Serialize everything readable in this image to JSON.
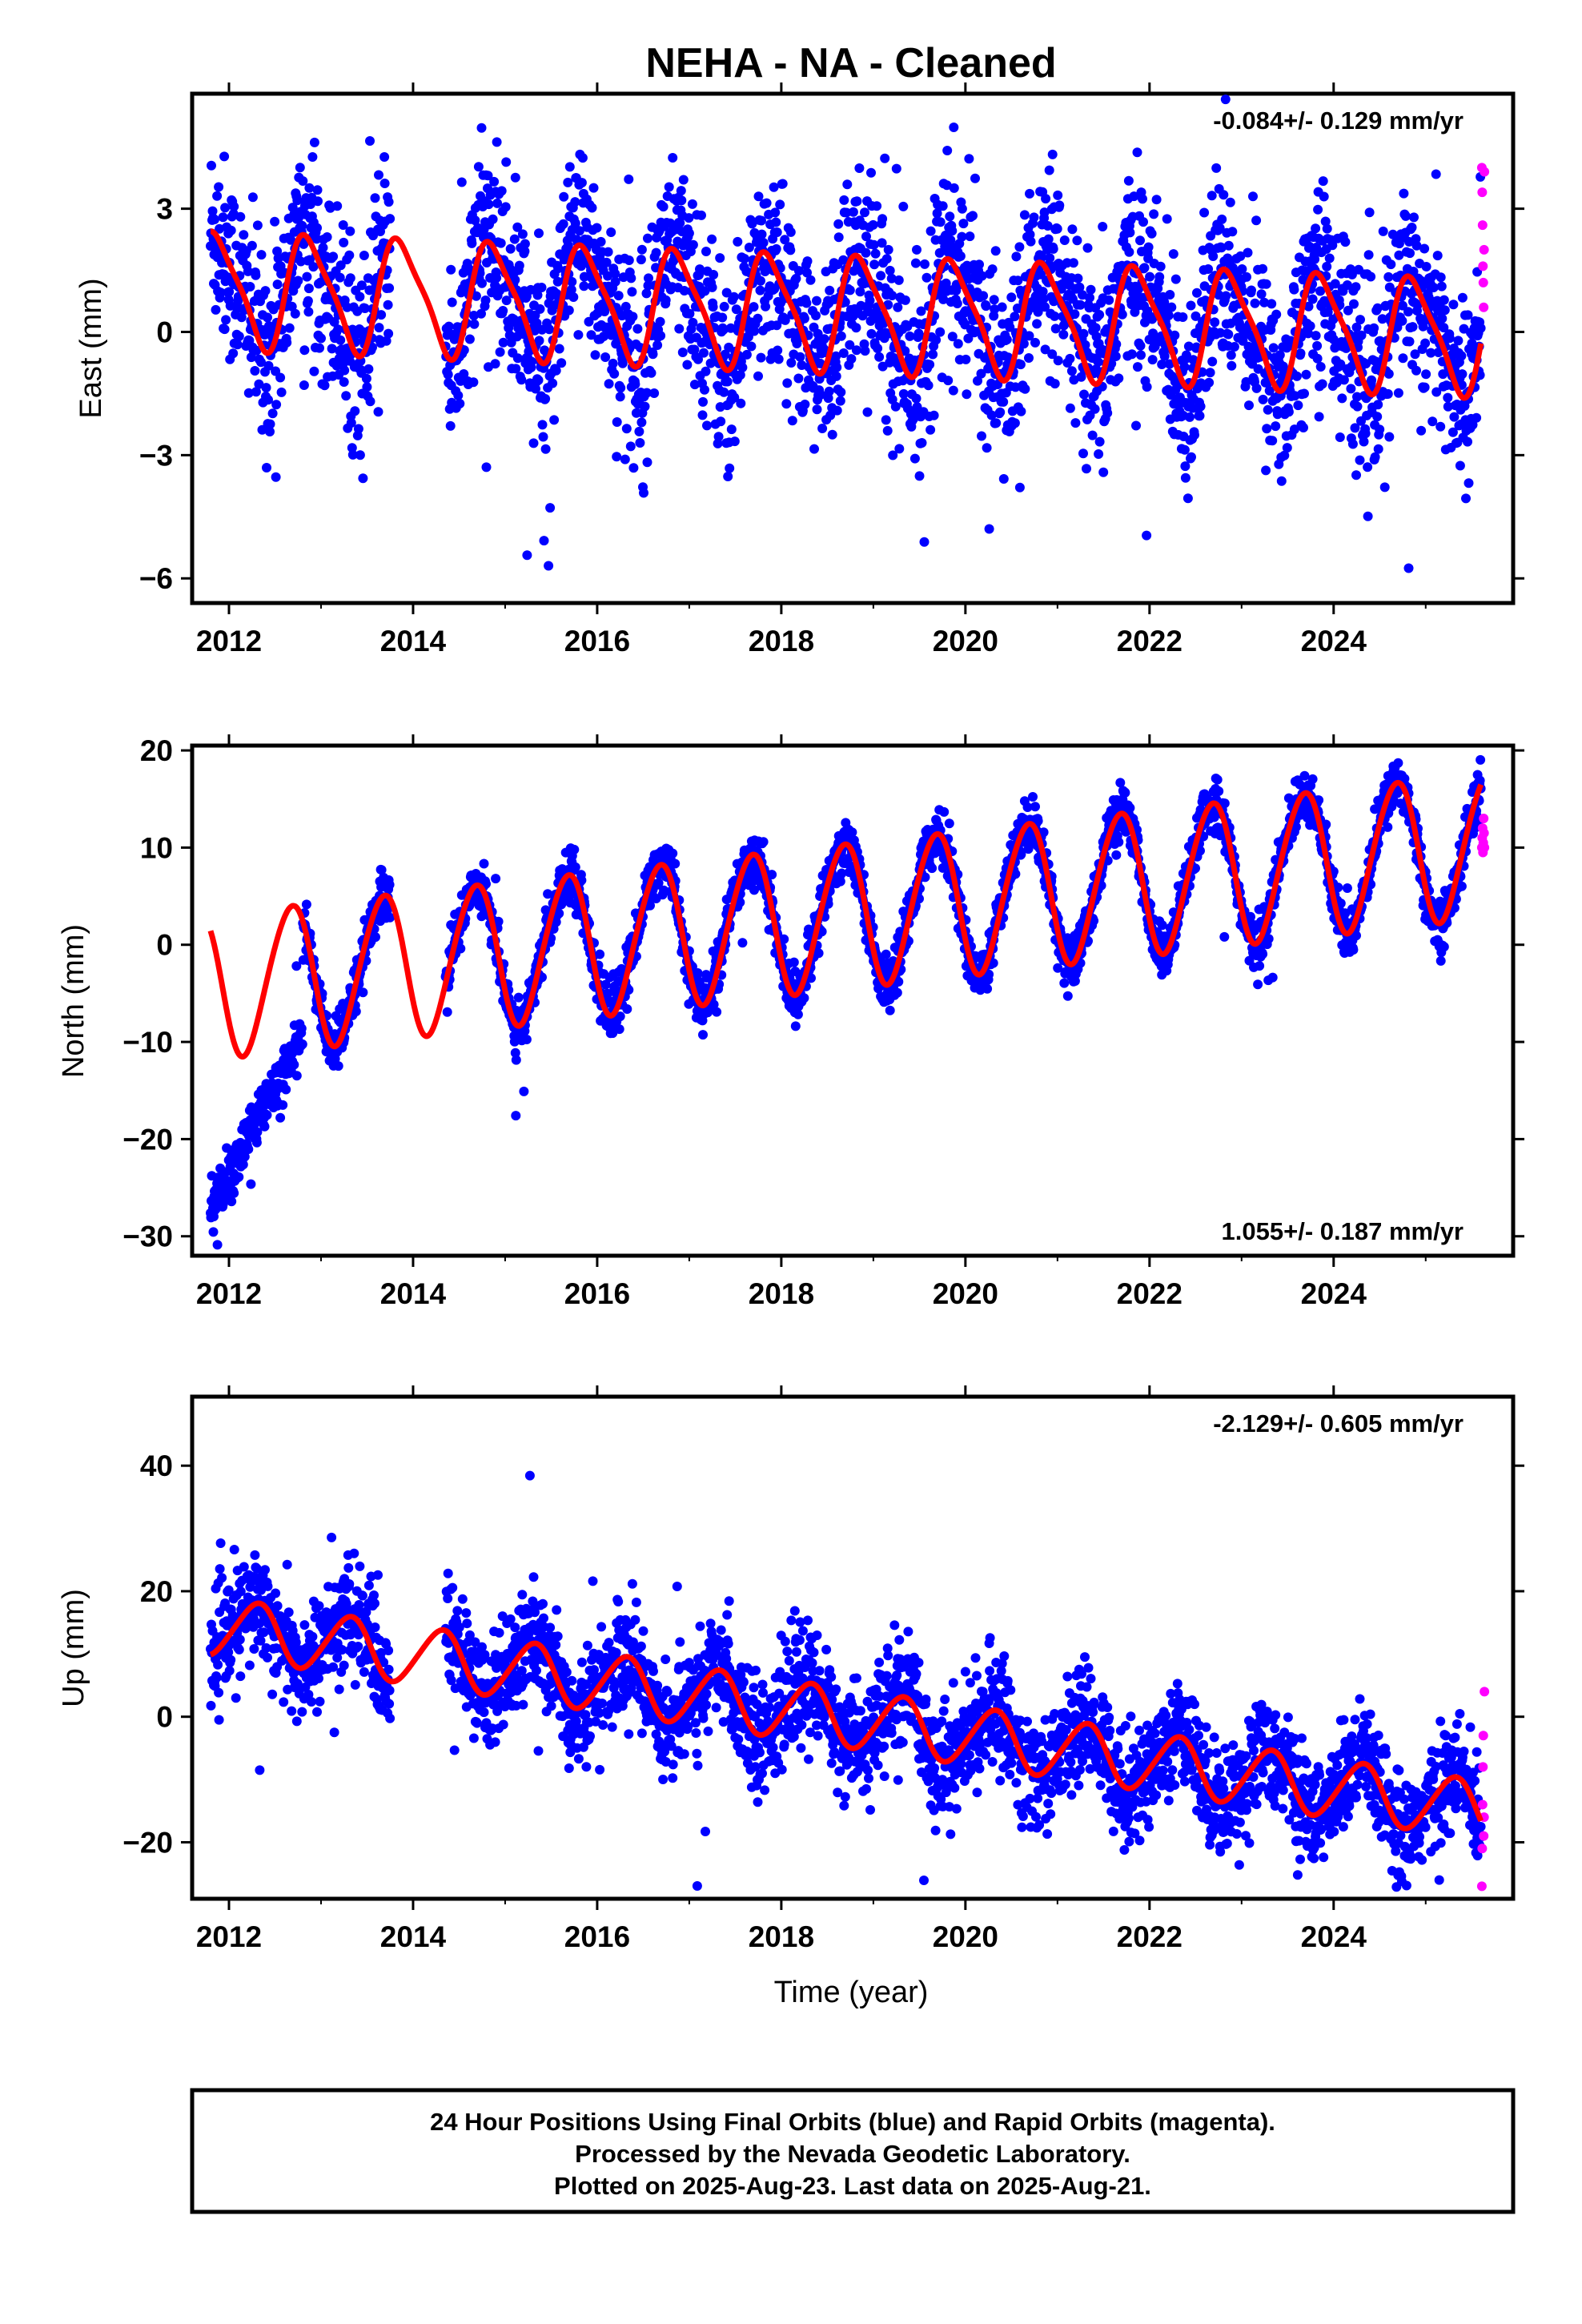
{
  "title": "NEHA  - NA - Cleaned",
  "xlabel": "Time (year)",
  "footer": [
    "24 Hour Positions Using Final Orbits (blue) and Rapid Orbits (magenta).",
    "Processed by the Nevada Geodetic Laboratory.",
    "Plotted on 2025-Aug-23. Last data on 2025-Aug-21."
  ],
  "colors": {
    "final": "#0000ff",
    "rapid": "#ff00ff",
    "model": "#ff0000",
    "frame": "#000000"
  },
  "chart_data": [
    {
      "type": "scatter",
      "name": "east",
      "ylabel": "East (mm)",
      "rate_label": "-0.084+/- 0.129 mm/yr",
      "rate_position": "top-right",
      "xlim": [
        2011.6,
        2025.95
      ],
      "ylim": [
        -6.6,
        5.8
      ],
      "xticks": [
        2012,
        2014,
        2016,
        2018,
        2020,
        2022,
        2024
      ],
      "yticks": [
        -6,
        -3,
        0,
        3
      ],
      "ytick_labels": [
        "−6",
        "−3",
        "0",
        "3"
      ],
      "data_range": [
        2011.8,
        2025.6
      ],
      "model": {
        "rate": -0.084,
        "offset": 1.05,
        "ref_year": 2011.8,
        "annual_amp": 1.35,
        "annual_phase": 0.62,
        "semi_amp": 0.3,
        "semi_phase": 0.1
      },
      "scatter_sigma": 1.15,
      "gap": [
        2013.75,
        2014.35
      ],
      "rapid_y": [
        4.0,
        3.4,
        2.6,
        1.6,
        1.2,
        0.6,
        2.0,
        3.9
      ]
    },
    {
      "type": "scatter",
      "name": "north",
      "ylabel": "North (mm)",
      "rate_label": "1.055+/- 0.187 mm/yr",
      "rate_position": "bottom-right",
      "xlim": [
        2011.6,
        2025.95
      ],
      "ylim": [
        -32,
        20.5
      ],
      "xticks": [
        2012,
        2014,
        2016,
        2018,
        2020,
        2022,
        2024
      ],
      "yticks": [
        -30,
        -20,
        -10,
        0,
        10,
        20
      ],
      "ytick_labels": [
        "−30",
        "−20",
        "−10",
        "0",
        "10",
        "20"
      ],
      "data_range": [
        2011.8,
        2025.6
      ],
      "model": {
        "rate": 1.055,
        "offset": -4.2,
        "ref_year": 2011.8,
        "annual_amp": 7.4,
        "annual_phase": 0.42,
        "semi_amp": 0.6,
        "semi_phase": 0.2
      },
      "scatter_sigma": 1.3,
      "early_transient": {
        "start": 2011.8,
        "end": 2012.8,
        "y_start": -27.5,
        "y_end": -9
      },
      "gap": [
        2013.75,
        2014.35
      ],
      "rapid_y": [
        10.0,
        11.0,
        12.0,
        9.5,
        10.5,
        13.0,
        11.5,
        10.0
      ]
    },
    {
      "type": "scatter",
      "name": "up",
      "ylabel": "Up (mm)",
      "rate_label": "-2.129+/- 0.605 mm/yr",
      "rate_position": "top-right",
      "xlim": [
        2011.6,
        2025.95
      ],
      "ylim": [
        -29,
        51
      ],
      "xticks": [
        2012,
        2014,
        2016,
        2018,
        2020,
        2022,
        2024
      ],
      "yticks": [
        -20,
        0,
        20,
        40
      ],
      "ytick_labels": [
        "−20",
        "0",
        "20",
        "40"
      ],
      "data_range": [
        2011.8,
        2025.6
      ],
      "model": {
        "rate": -2.129,
        "offset": 14.5,
        "ref_year": 2011.8,
        "annual_amp": 4.6,
        "annual_phase": 0.05,
        "semi_amp": 0.5,
        "semi_phase": 0.3
      },
      "scatter_sigma": 4.3,
      "gap": [
        2013.75,
        2014.35
      ],
      "rapid_y": [
        -27,
        -21,
        -14,
        -8,
        -3,
        -19,
        -16,
        4
      ]
    }
  ]
}
